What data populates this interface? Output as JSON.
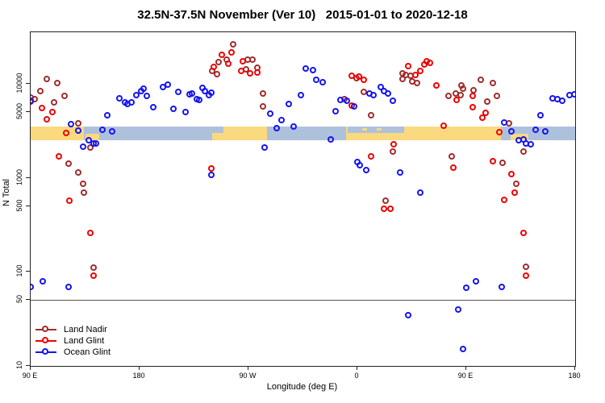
{
  "title": "32.5N-37.5N November (Ver 10)   2015-01-01 to 2020-12-18",
  "chart_data": {
    "type": "scatter",
    "xlabel": "Longitude (deg E)",
    "ylabel": "N Total",
    "x_axis": {
      "note": "longitude axis wraps eastward from 90E through 180, 90W, 0, back to 180",
      "lim": [
        90,
        540
      ],
      "ticks": [
        {
          "lon": 90,
          "label": "90 E"
        },
        {
          "lon": 180,
          "label": "180"
        },
        {
          "lon": 270,
          "label": "90 W"
        },
        {
          "lon": 360,
          "label": "0"
        },
        {
          "lon": 450,
          "label": "90 E"
        },
        {
          "lon": 540,
          "label": "180"
        }
      ]
    },
    "y_axis": {
      "scale": "log10",
      "lim": [
        10,
        36000
      ],
      "ticks": [
        10000,
        5000,
        1000,
        500,
        100,
        50,
        10
      ]
    },
    "reference_line_n": 50,
    "grid": false,
    "legend_position": "bottom-left-inside",
    "map_strip": {
      "n_range": [
        2500,
        3500
      ],
      "ocean_color": "#AEC1DC",
      "land_color": "#FAD97F",
      "land_segments": [
        {
          "from": 90,
          "to": 133.7,
          "part": "full"
        },
        {
          "from": 135.3,
          "to": 146.7,
          "part": "lower"
        },
        {
          "from": 240,
          "to": 285.3,
          "part": "full"
        },
        {
          "from": 350.7,
          "to": 478.7,
          "part": "full"
        },
        {
          "from": 486.7,
          "to": 501.3,
          "part": "lower"
        }
      ],
      "ocean_overlays": [
        {
          "from": 240,
          "to": 249,
          "part": "upper"
        },
        {
          "from": 352,
          "to": 398.7,
          "part": "upper"
        }
      ],
      "islands": [
        {
          "from": 364,
          "to": 368
        },
        {
          "from": 376,
          "to": 380
        }
      ]
    },
    "series": [
      {
        "name": "Land Nadir",
        "color": "#A02C2C",
        "points": [
          [
            90,
            7100
          ],
          [
            93,
            6860
          ],
          [
            98,
            8330
          ],
          [
            103,
            11200
          ],
          [
            109,
            6340
          ],
          [
            112,
            10200
          ],
          [
            118,
            7420
          ],
          [
            129,
            3790
          ],
          [
            139,
            2100
          ],
          [
            121,
            1420
          ],
          [
            129,
            1140
          ],
          [
            133,
            864
          ],
          [
            134,
            695
          ],
          [
            142,
            111
          ],
          [
            240,
            13600
          ],
          [
            244,
            12600
          ],
          [
            245,
            17000
          ],
          [
            252,
            18200
          ],
          [
            257,
            26500
          ],
          [
            268,
            14200
          ],
          [
            269,
            17900
          ],
          [
            273,
            17900
          ],
          [
            277,
            14800
          ],
          [
            282,
            7900
          ],
          [
            282,
            5760
          ],
          [
            349,
            6860
          ],
          [
            359,
            11500
          ],
          [
            365,
            8200
          ],
          [
            371,
            4620
          ],
          [
            383,
            571
          ],
          [
            389,
            1900
          ],
          [
            397,
            12900
          ],
          [
            400,
            12400
          ],
          [
            404,
            12200
          ],
          [
            397,
            11200
          ],
          [
            405,
            10600
          ],
          [
            409,
            10200
          ],
          [
            435,
            7420
          ],
          [
            446,
            9550
          ],
          [
            447,
            8870
          ],
          [
            441,
            7870
          ],
          [
            445,
            7570
          ],
          [
            456,
            8510
          ],
          [
            462,
            10960
          ],
          [
            472,
            10200
          ],
          [
            467,
            6460
          ],
          [
            475,
            7420
          ],
          [
            485,
            3790
          ],
          [
            497,
            1900
          ],
          [
            438,
            1700
          ],
          [
            480,
            1450
          ],
          [
            491,
            864
          ],
          [
            499,
            113
          ]
        ]
      },
      {
        "name": "Land Glint",
        "color": "#EE0000",
        "points": [
          [
            90,
            6460
          ],
          [
            99,
            5520
          ],
          [
            108,
            5010
          ],
          [
            103,
            4190
          ],
          [
            119,
            2990
          ],
          [
            113,
            1690
          ],
          [
            122,
            571
          ],
          [
            139,
            259
          ],
          [
            142,
            91
          ],
          [
            239,
            1260
          ],
          [
            241,
            15100
          ],
          [
            248,
            20200
          ],
          [
            253,
            16300
          ],
          [
            256,
            21400
          ],
          [
            264,
            13600
          ],
          [
            265,
            17400
          ],
          [
            271,
            12900
          ],
          [
            277,
            13100
          ],
          [
            355,
            12200
          ],
          [
            361,
            11900
          ],
          [
            365,
            11000
          ],
          [
            355,
            5860
          ],
          [
            371,
            1700
          ],
          [
            382,
            468
          ],
          [
            387,
            468
          ],
          [
            390,
            2290
          ],
          [
            402,
            15400
          ],
          [
            408,
            12400
          ],
          [
            412,
            13700
          ],
          [
            415,
            16000
          ],
          [
            417,
            17400
          ],
          [
            420,
            16600
          ],
          [
            425,
            9550
          ],
          [
            431,
            3580
          ],
          [
            442,
            6730
          ],
          [
            455,
            7420
          ],
          [
            455,
            5620
          ],
          [
            463,
            4360
          ],
          [
            466,
            4900
          ],
          [
            477,
            3050
          ],
          [
            439,
            1280
          ],
          [
            472,
            1500
          ],
          [
            487,
            1100
          ],
          [
            490,
            695
          ],
          [
            481,
            582
          ],
          [
            497,
            259
          ],
          [
            499,
            91
          ]
        ]
      },
      {
        "name": "Ocean Glint",
        "color": "#1414F0",
        "points": [
          [
            90,
            6650
          ],
          [
            123,
            3720
          ],
          [
            129,
            3160
          ],
          [
            133,
            2140
          ],
          [
            138,
            2510
          ],
          [
            142,
            2320
          ],
          [
            144,
            2320
          ],
          [
            149,
            3240
          ],
          [
            153,
            4620
          ],
          [
            157,
            3120
          ],
          [
            163,
            7000
          ],
          [
            168,
            6340
          ],
          [
            170,
            6100
          ],
          [
            173,
            6340
          ],
          [
            177,
            7570
          ],
          [
            181,
            8330
          ],
          [
            183,
            8870
          ],
          [
            186,
            7420
          ],
          [
            191,
            5620
          ],
          [
            199,
            9230
          ],
          [
            203,
            9770
          ],
          [
            208,
            5420
          ],
          [
            212,
            8130
          ],
          [
            218,
            5010
          ],
          [
            221,
            7730
          ],
          [
            223,
            7870
          ],
          [
            227,
            6860
          ],
          [
            229,
            6780
          ],
          [
            232,
            9120
          ],
          [
            234,
            8330
          ],
          [
            237,
            7570
          ],
          [
            239,
            8100
          ],
          [
            100,
            79
          ],
          [
            90,
            69
          ],
          [
            121,
            69
          ],
          [
            239,
            1070
          ],
          [
            283,
            2090
          ],
          [
            288,
            4790
          ],
          [
            293,
            3370
          ],
          [
            297,
            4110
          ],
          [
            303,
            6100
          ],
          [
            307,
            3510
          ],
          [
            313,
            7570
          ],
          [
            317,
            14500
          ],
          [
            323,
            14000
          ],
          [
            326,
            10960
          ],
          [
            331,
            10400
          ],
          [
            338,
            2560
          ],
          [
            342,
            5100
          ],
          [
            346,
            6780
          ],
          [
            351,
            6650
          ],
          [
            357,
            5730
          ],
          [
            360,
            1470
          ],
          [
            362,
            1360
          ],
          [
            367,
            1200
          ],
          [
            370,
            7870
          ],
          [
            373,
            7570
          ],
          [
            379,
            9230
          ],
          [
            382,
            8330
          ],
          [
            385,
            7870
          ],
          [
            389,
            6650
          ],
          [
            395,
            1140
          ],
          [
            402,
            35
          ],
          [
            412,
            695
          ],
          [
            443,
            40
          ],
          [
            447,
            15
          ],
          [
            450,
            68
          ],
          [
            458,
            79
          ],
          [
            479,
            69
          ],
          [
            481,
            3870
          ],
          [
            487,
            3120
          ],
          [
            493,
            2510
          ],
          [
            497,
            2560
          ],
          [
            499,
            2320
          ],
          [
            503,
            2290
          ],
          [
            507,
            3240
          ],
          [
            511,
            4620
          ],
          [
            515,
            3120
          ],
          [
            521,
            7000
          ],
          [
            525,
            6860
          ],
          [
            529,
            6650
          ],
          [
            535,
            7570
          ],
          [
            539,
            7650
          ]
        ]
      }
    ]
  }
}
